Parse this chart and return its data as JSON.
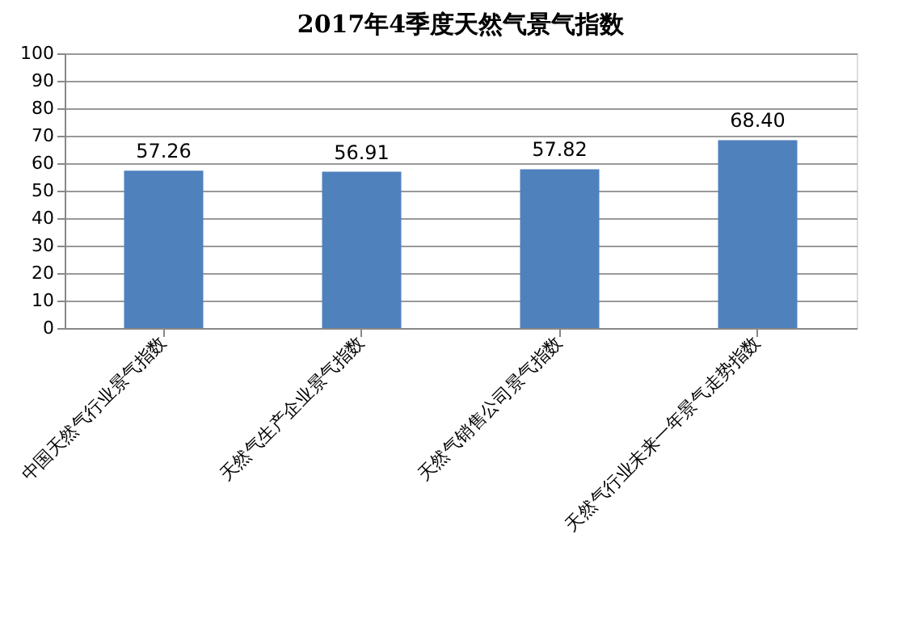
{
  "chart_data": {
    "type": "bar",
    "title": "2017年4季度天然气景气指数",
    "categories": [
      "中国天然气行业景气指数",
      "天然气生产企业景气指数",
      "天然气销售公司景气指数",
      "天然气行业未来一年景气走势指数"
    ],
    "values": [
      57.26,
      56.91,
      57.82,
      68.4
    ],
    "value_labels": [
      "57.26",
      "56.91",
      "57.82",
      "68.40"
    ],
    "color": "#4f81bd",
    "ylim": [
      0,
      100
    ],
    "yticks": [
      0,
      10,
      20,
      30,
      40,
      50,
      60,
      70,
      80,
      90,
      100
    ],
    "grid": "y"
  }
}
